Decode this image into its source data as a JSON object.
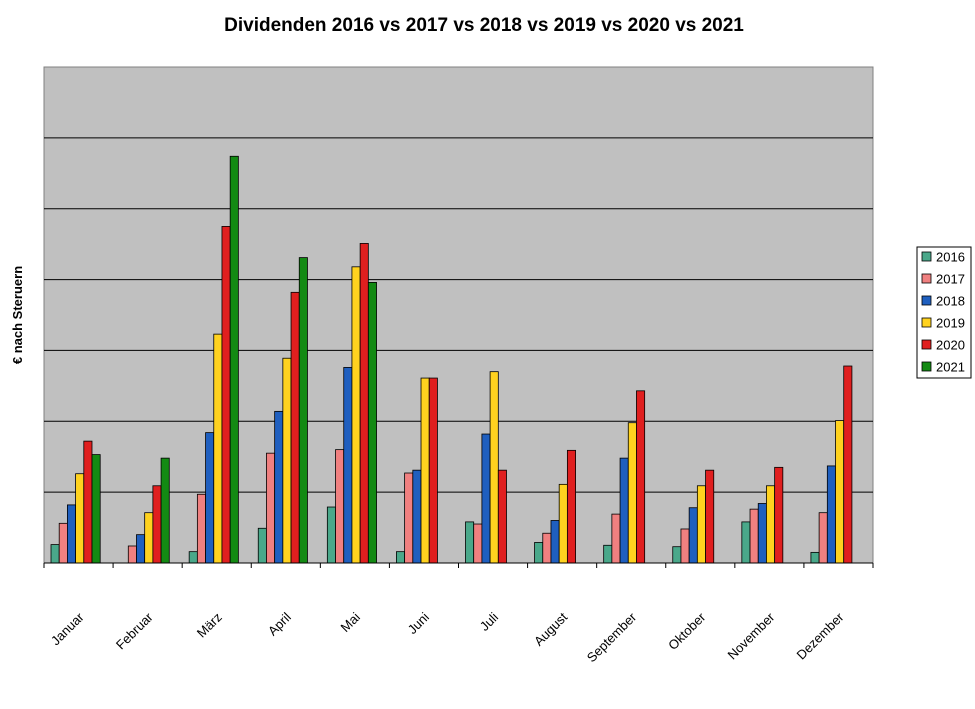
{
  "chart_data": {
    "type": "bar",
    "title": "Dividenden 2016 vs 2017 vs 2018 vs 2019 vs 2020 vs 2021",
    "xlabel": "",
    "ylabel": "€ nach Steruern",
    "grid": true,
    "legend_position": "right",
    "plot_background": "#c0c0c0",
    "ylim": [
      0,
      7
    ],
    "categories": [
      "Januar",
      "Februar",
      "März",
      "April",
      "Mai",
      "Juni",
      "Juli",
      "August",
      "September",
      "Oktober",
      "November",
      "Dezember"
    ],
    "series": [
      {
        "name": "2016",
        "color": "#4aa88a",
        "values": [
          0.26,
          null,
          0.16,
          0.49,
          0.79,
          0.16,
          0.58,
          0.29,
          0.25,
          0.23,
          0.58,
          0.15
        ]
      },
      {
        "name": "2017",
        "color": "#f08080",
        "values": [
          0.56,
          0.24,
          0.97,
          1.55,
          1.6,
          1.27,
          0.55,
          0.42,
          0.69,
          0.48,
          0.76,
          0.71
        ]
      },
      {
        "name": "2018",
        "color": "#1f5fbf",
        "values": [
          0.82,
          0.4,
          1.84,
          2.14,
          2.76,
          1.31,
          1.82,
          0.6,
          1.48,
          0.78,
          0.84,
          1.37
        ]
      },
      {
        "name": "2019",
        "color": "#ffd21f",
        "values": [
          1.26,
          0.71,
          3.23,
          2.89,
          4.18,
          2.61,
          2.7,
          1.11,
          1.98,
          1.09,
          1.09,
          2.01
        ]
      },
      {
        "name": "2020",
        "color": "#e01f1f",
        "values": [
          1.72,
          1.09,
          4.75,
          3.82,
          4.51,
          2.61,
          1.31,
          1.59,
          2.43,
          1.31,
          1.35,
          2.78
        ]
      },
      {
        "name": "2021",
        "color": "#138a13",
        "values": [
          1.53,
          1.48,
          5.74,
          4.31,
          3.96,
          null,
          null,
          null,
          null,
          null,
          null,
          null
        ]
      }
    ]
  }
}
